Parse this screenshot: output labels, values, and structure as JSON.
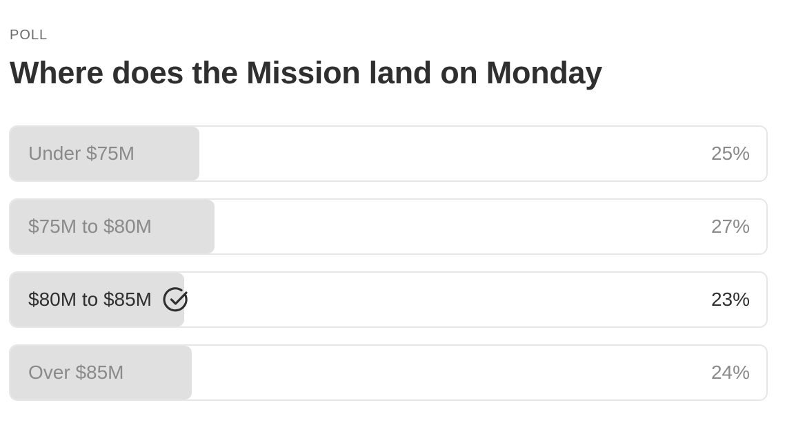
{
  "poll": {
    "eyebrow": "POLL",
    "title": "Where does the Mission land on Monday",
    "options": [
      {
        "label": "Under $75M",
        "percent_text": "25%",
        "percent": 25,
        "selected": false
      },
      {
        "label": "$75M to $80M",
        "percent_text": "27%",
        "percent": 27,
        "selected": false
      },
      {
        "label": "$80M to $85M",
        "percent_text": "23%",
        "percent": 23,
        "selected": true,
        "icon": "check-circle-icon"
      },
      {
        "label": "Over $85M",
        "percent_text": "24%",
        "percent": 24,
        "selected": false
      }
    ]
  },
  "colors": {
    "fill": "#e0e0e0",
    "border": "#e6e6e6",
    "text_dark": "#2f2f2f",
    "text_muted": "#8a8a8a"
  }
}
